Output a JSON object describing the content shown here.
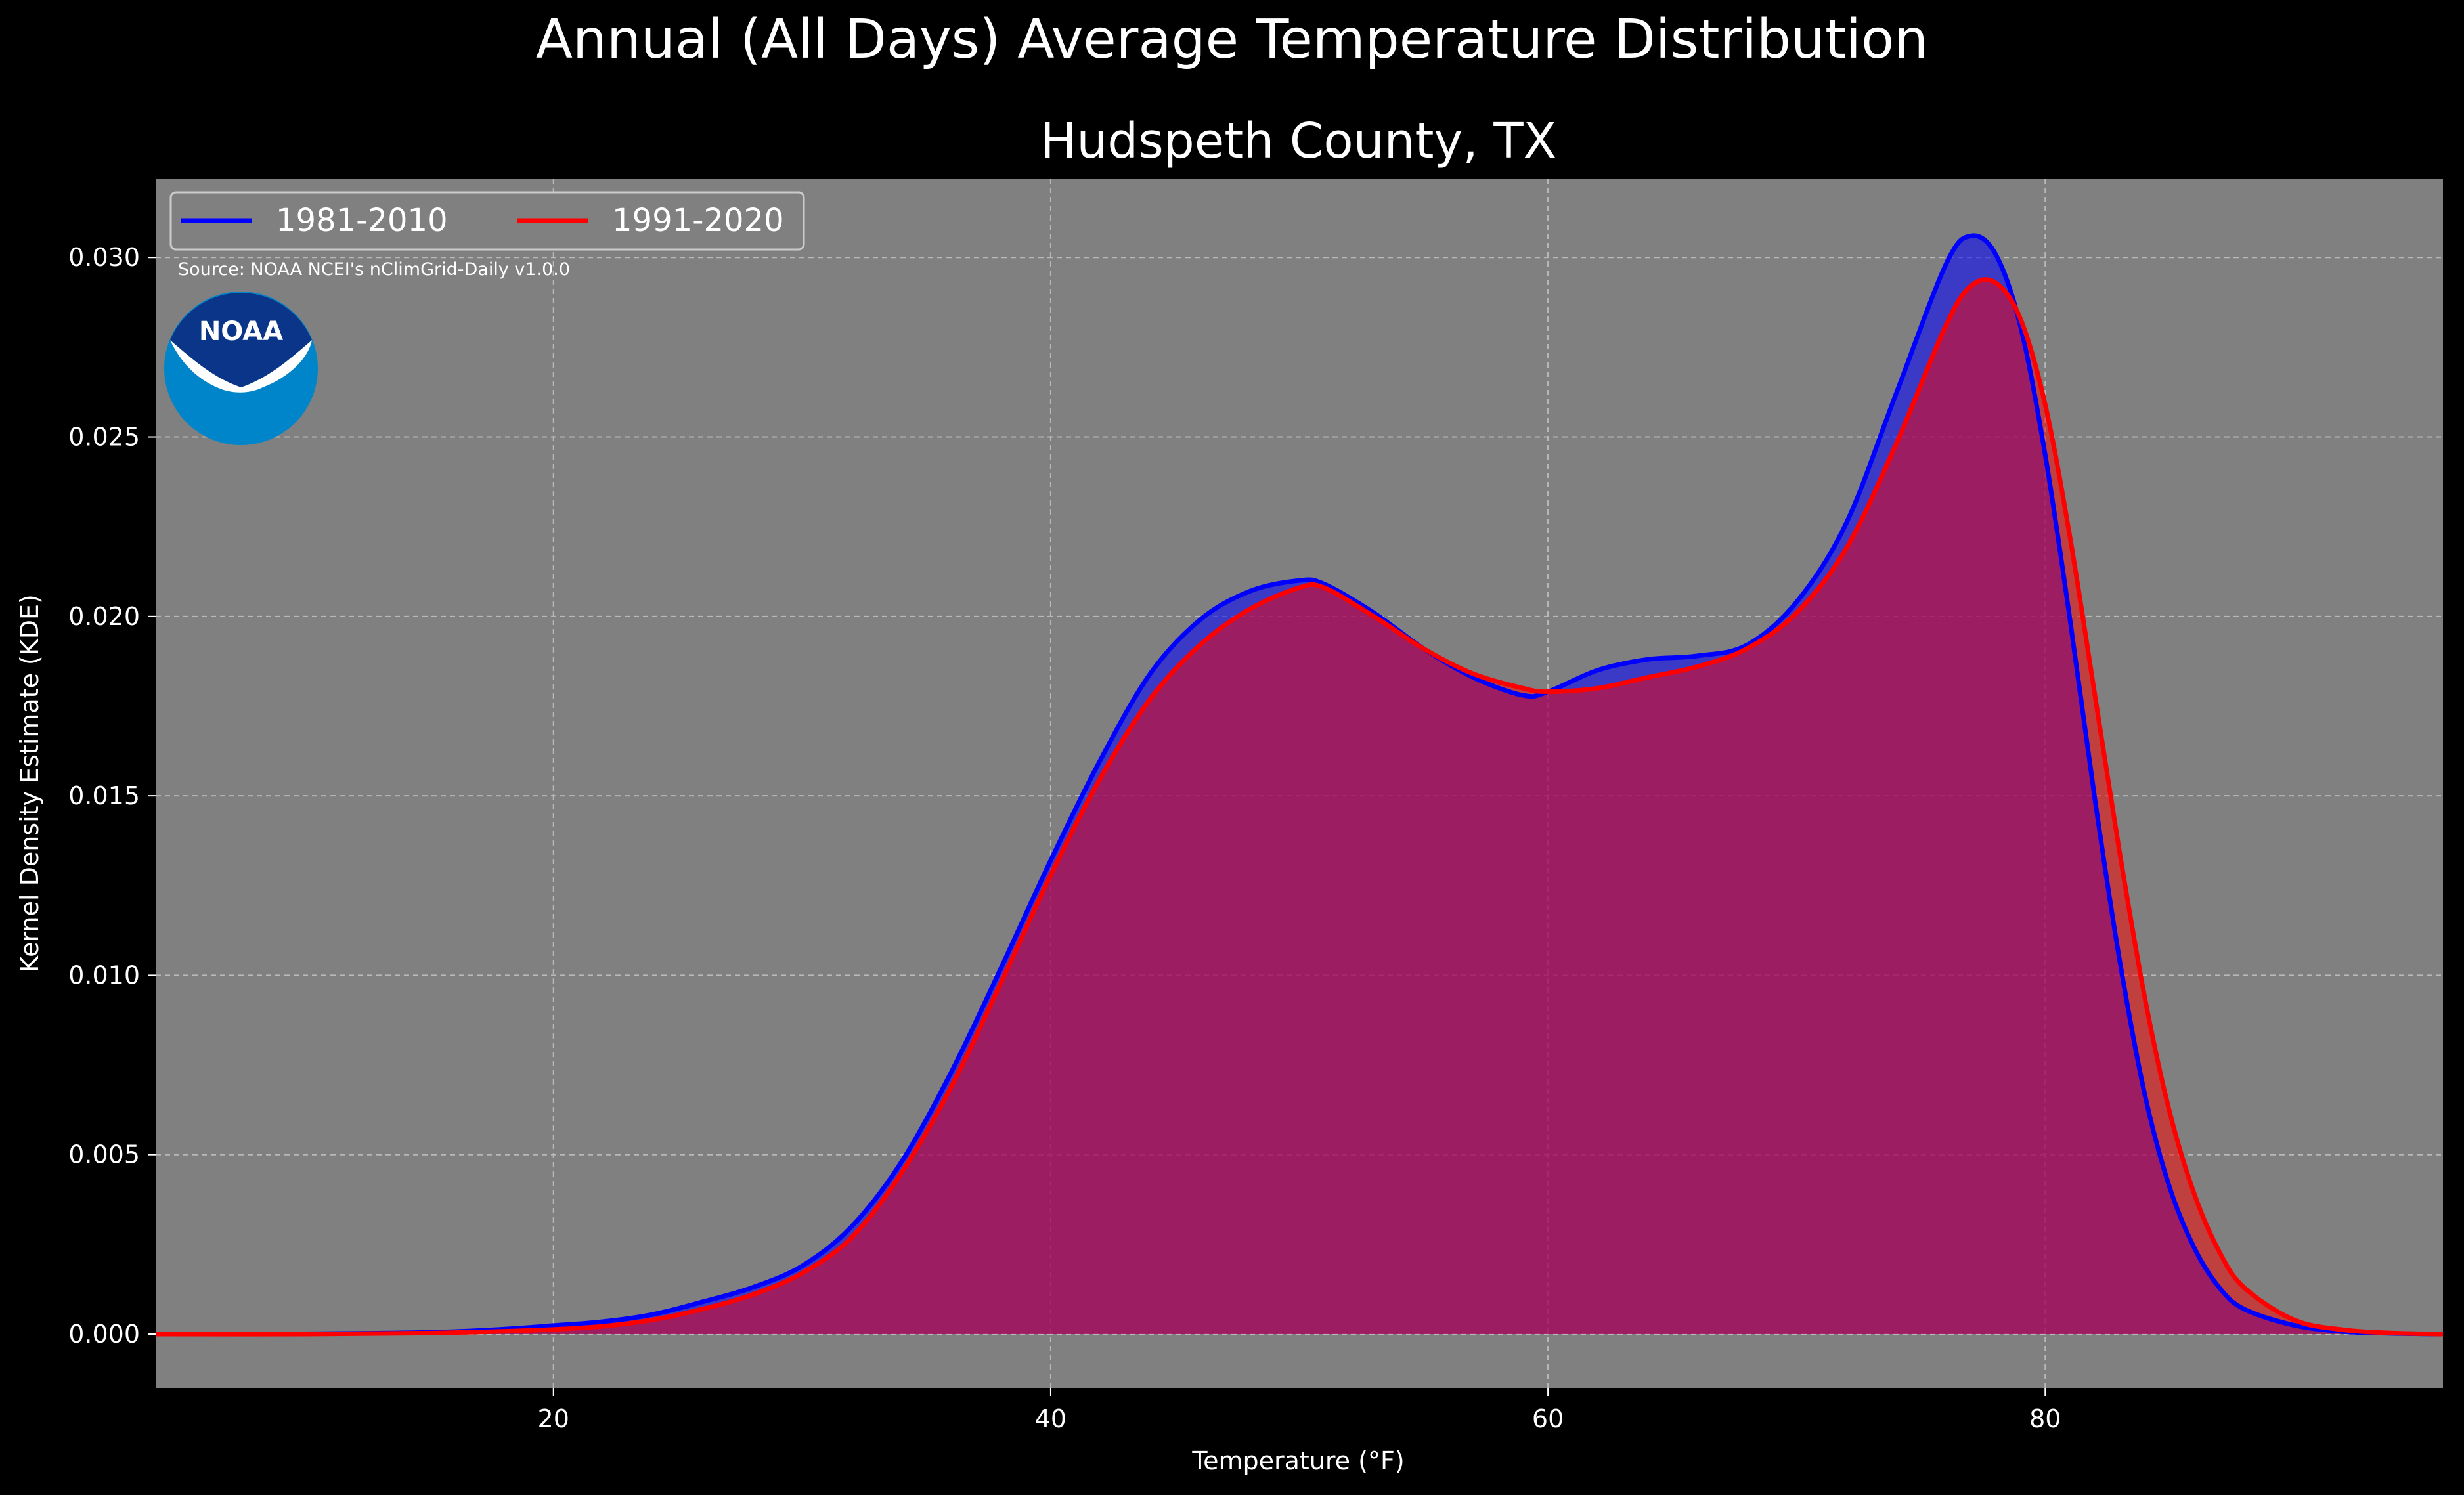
{
  "figure": {
    "suptitle": "Annual (All Days) Average Temperature Distribution",
    "title": "Hudspeth County, TX",
    "source": "Source: NOAA NCEI's nClimGrid-Daily v1.0.0",
    "logo_text": "NOAA"
  },
  "colors": {
    "background": "#000000",
    "plot_bg": "#808080",
    "grid": "#b8b8b8",
    "series_1981": "#0000ff",
    "series_1991": "#ff0000",
    "noaa_dark": "#0a3589",
    "noaa_light": "#0085ca"
  },
  "chart_data": {
    "type": "area",
    "xlabel": "Temperature (°F)",
    "ylabel": "Kernel Density Estimate (KDE)",
    "xlim": [
      4,
      96
    ],
    "ylim": [
      -0.0015,
      0.0322
    ],
    "xticks": [
      20,
      40,
      60,
      80
    ],
    "xtick_labels": [
      "20",
      "40",
      "60",
      "80"
    ],
    "yticks": [
      0.0,
      0.005,
      0.01,
      0.015,
      0.02,
      0.025,
      0.03
    ],
    "ytick_labels": [
      "0.000",
      "0.005",
      "0.010",
      "0.015",
      "0.020",
      "0.025",
      "0.030"
    ],
    "grid": true,
    "legend_position": "top-left",
    "series": [
      {
        "name": "1981-2010",
        "color": "#0000ff",
        "points": [
          [
            4,
            0.0
          ],
          [
            10,
            1e-05
          ],
          [
            15,
            5e-05
          ],
          [
            18,
            0.00014
          ],
          [
            20,
            0.00024
          ],
          [
            22,
            0.00035
          ],
          [
            24,
            0.00055
          ],
          [
            26,
            0.0009
          ],
          [
            28,
            0.0013
          ],
          [
            30,
            0.0019
          ],
          [
            32,
            0.003
          ],
          [
            34,
            0.0048
          ],
          [
            36,
            0.0073
          ],
          [
            38,
            0.0102
          ],
          [
            40,
            0.0132
          ],
          [
            42,
            0.016
          ],
          [
            44,
            0.0184
          ],
          [
            46,
            0.0199
          ],
          [
            48,
            0.0207
          ],
          [
            50,
            0.021
          ],
          [
            51,
            0.0209
          ],
          [
            53,
            0.0201
          ],
          [
            55,
            0.0191
          ],
          [
            57,
            0.0183
          ],
          [
            59,
            0.0178
          ],
          [
            60,
            0.0179
          ],
          [
            62,
            0.0185
          ],
          [
            64,
            0.0188
          ],
          [
            66,
            0.0189
          ],
          [
            68,
            0.0192
          ],
          [
            70,
            0.0204
          ],
          [
            72,
            0.0226
          ],
          [
            74,
            0.0262
          ],
          [
            76,
            0.0298
          ],
          [
            77,
            0.0306
          ],
          [
            78,
            0.0301
          ],
          [
            79,
            0.0281
          ],
          [
            80,
            0.0245
          ],
          [
            81,
            0.0199
          ],
          [
            82,
            0.0149
          ],
          [
            83,
            0.0104
          ],
          [
            84,
            0.0067
          ],
          [
            85,
            0.0041
          ],
          [
            86,
            0.0024
          ],
          [
            87,
            0.0013
          ],
          [
            88,
            0.0007
          ],
          [
            90,
            0.00025
          ],
          [
            92,
            7e-05
          ],
          [
            94,
            2e-05
          ],
          [
            96,
            0.0
          ]
        ]
      },
      {
        "name": "1991-2020",
        "color": "#ff0000",
        "points": [
          [
            4,
            0.0
          ],
          [
            10,
            0.0
          ],
          [
            15,
            3e-05
          ],
          [
            18,
            8e-05
          ],
          [
            20,
            0.00013
          ],
          [
            22,
            0.00022
          ],
          [
            24,
            0.0004
          ],
          [
            26,
            0.0007
          ],
          [
            28,
            0.0011
          ],
          [
            30,
            0.0017
          ],
          [
            32,
            0.0027
          ],
          [
            34,
            0.0045
          ],
          [
            36,
            0.0069
          ],
          [
            38,
            0.0098
          ],
          [
            40,
            0.0128
          ],
          [
            42,
            0.0155
          ],
          [
            44,
            0.0177
          ],
          [
            46,
            0.0192
          ],
          [
            48,
            0.0202
          ],
          [
            50,
            0.0208
          ],
          [
            51,
            0.0208
          ],
          [
            53,
            0.02
          ],
          [
            55,
            0.0191
          ],
          [
            57,
            0.0184
          ],
          [
            59,
            0.018
          ],
          [
            60,
            0.0179
          ],
          [
            62,
            0.018
          ],
          [
            64,
            0.0183
          ],
          [
            66,
            0.0186
          ],
          [
            68,
            0.0191
          ],
          [
            70,
            0.0201
          ],
          [
            72,
            0.0219
          ],
          [
            74,
            0.0248
          ],
          [
            76,
            0.0281
          ],
          [
            77,
            0.0292
          ],
          [
            78,
            0.0293
          ],
          [
            79,
            0.0283
          ],
          [
            80,
            0.0259
          ],
          [
            81,
            0.0222
          ],
          [
            82,
            0.0178
          ],
          [
            83,
            0.0134
          ],
          [
            84,
            0.0094
          ],
          [
            85,
            0.0062
          ],
          [
            86,
            0.0039
          ],
          [
            87,
            0.0023
          ],
          [
            88,
            0.0013
          ],
          [
            90,
            0.0004
          ],
          [
            92,
            0.00012
          ],
          [
            94,
            3e-05
          ],
          [
            96,
            0.0
          ]
        ]
      }
    ]
  }
}
